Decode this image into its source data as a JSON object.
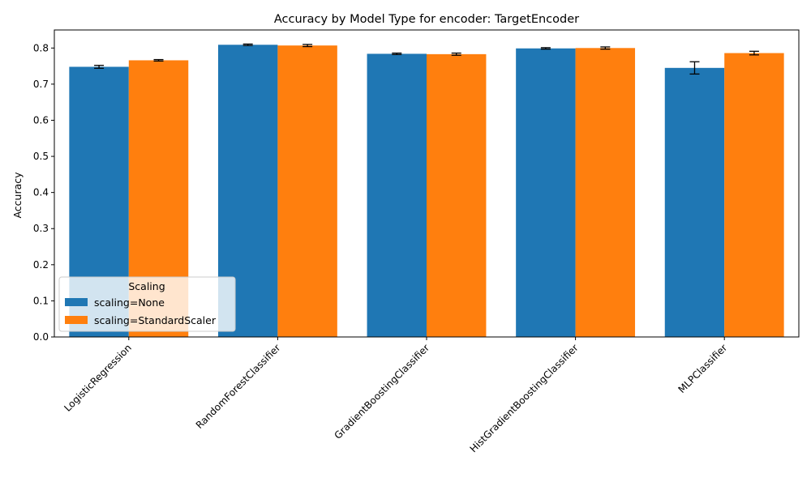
{
  "chart_data": {
    "type": "bar",
    "title": "Accuracy by Model Type for encoder: TargetEncoder",
    "xlabel": "",
    "ylabel": "Accuracy",
    "ylim": [
      0,
      0.85
    ],
    "yticks": [
      "0.0",
      "0.1",
      "0.2",
      "0.3",
      "0.4",
      "0.5",
      "0.6",
      "0.7",
      "0.8"
    ],
    "categories": [
      "LogisticRegression",
      "RandomForestClassifier",
      "GradientBoostingClassifier",
      "HistGradientBoostingClassifier",
      "MLPClassifier"
    ],
    "series": [
      {
        "name": "scaling=None",
        "color": "#1f77b4",
        "values": [
          0.748,
          0.809,
          0.784,
          0.799,
          0.745
        ],
        "errors": [
          0.004,
          0.002,
          0.002,
          0.002,
          0.017
        ]
      },
      {
        "name": "scaling=StandardScaler",
        "color": "#ff7f0e",
        "values": [
          0.766,
          0.807,
          0.783,
          0.8,
          0.786
        ],
        "errors": [
          0.002,
          0.003,
          0.003,
          0.003,
          0.005
        ]
      }
    ],
    "legend": {
      "title": "Scaling",
      "placement": "lower-left"
    },
    "grid": false
  }
}
